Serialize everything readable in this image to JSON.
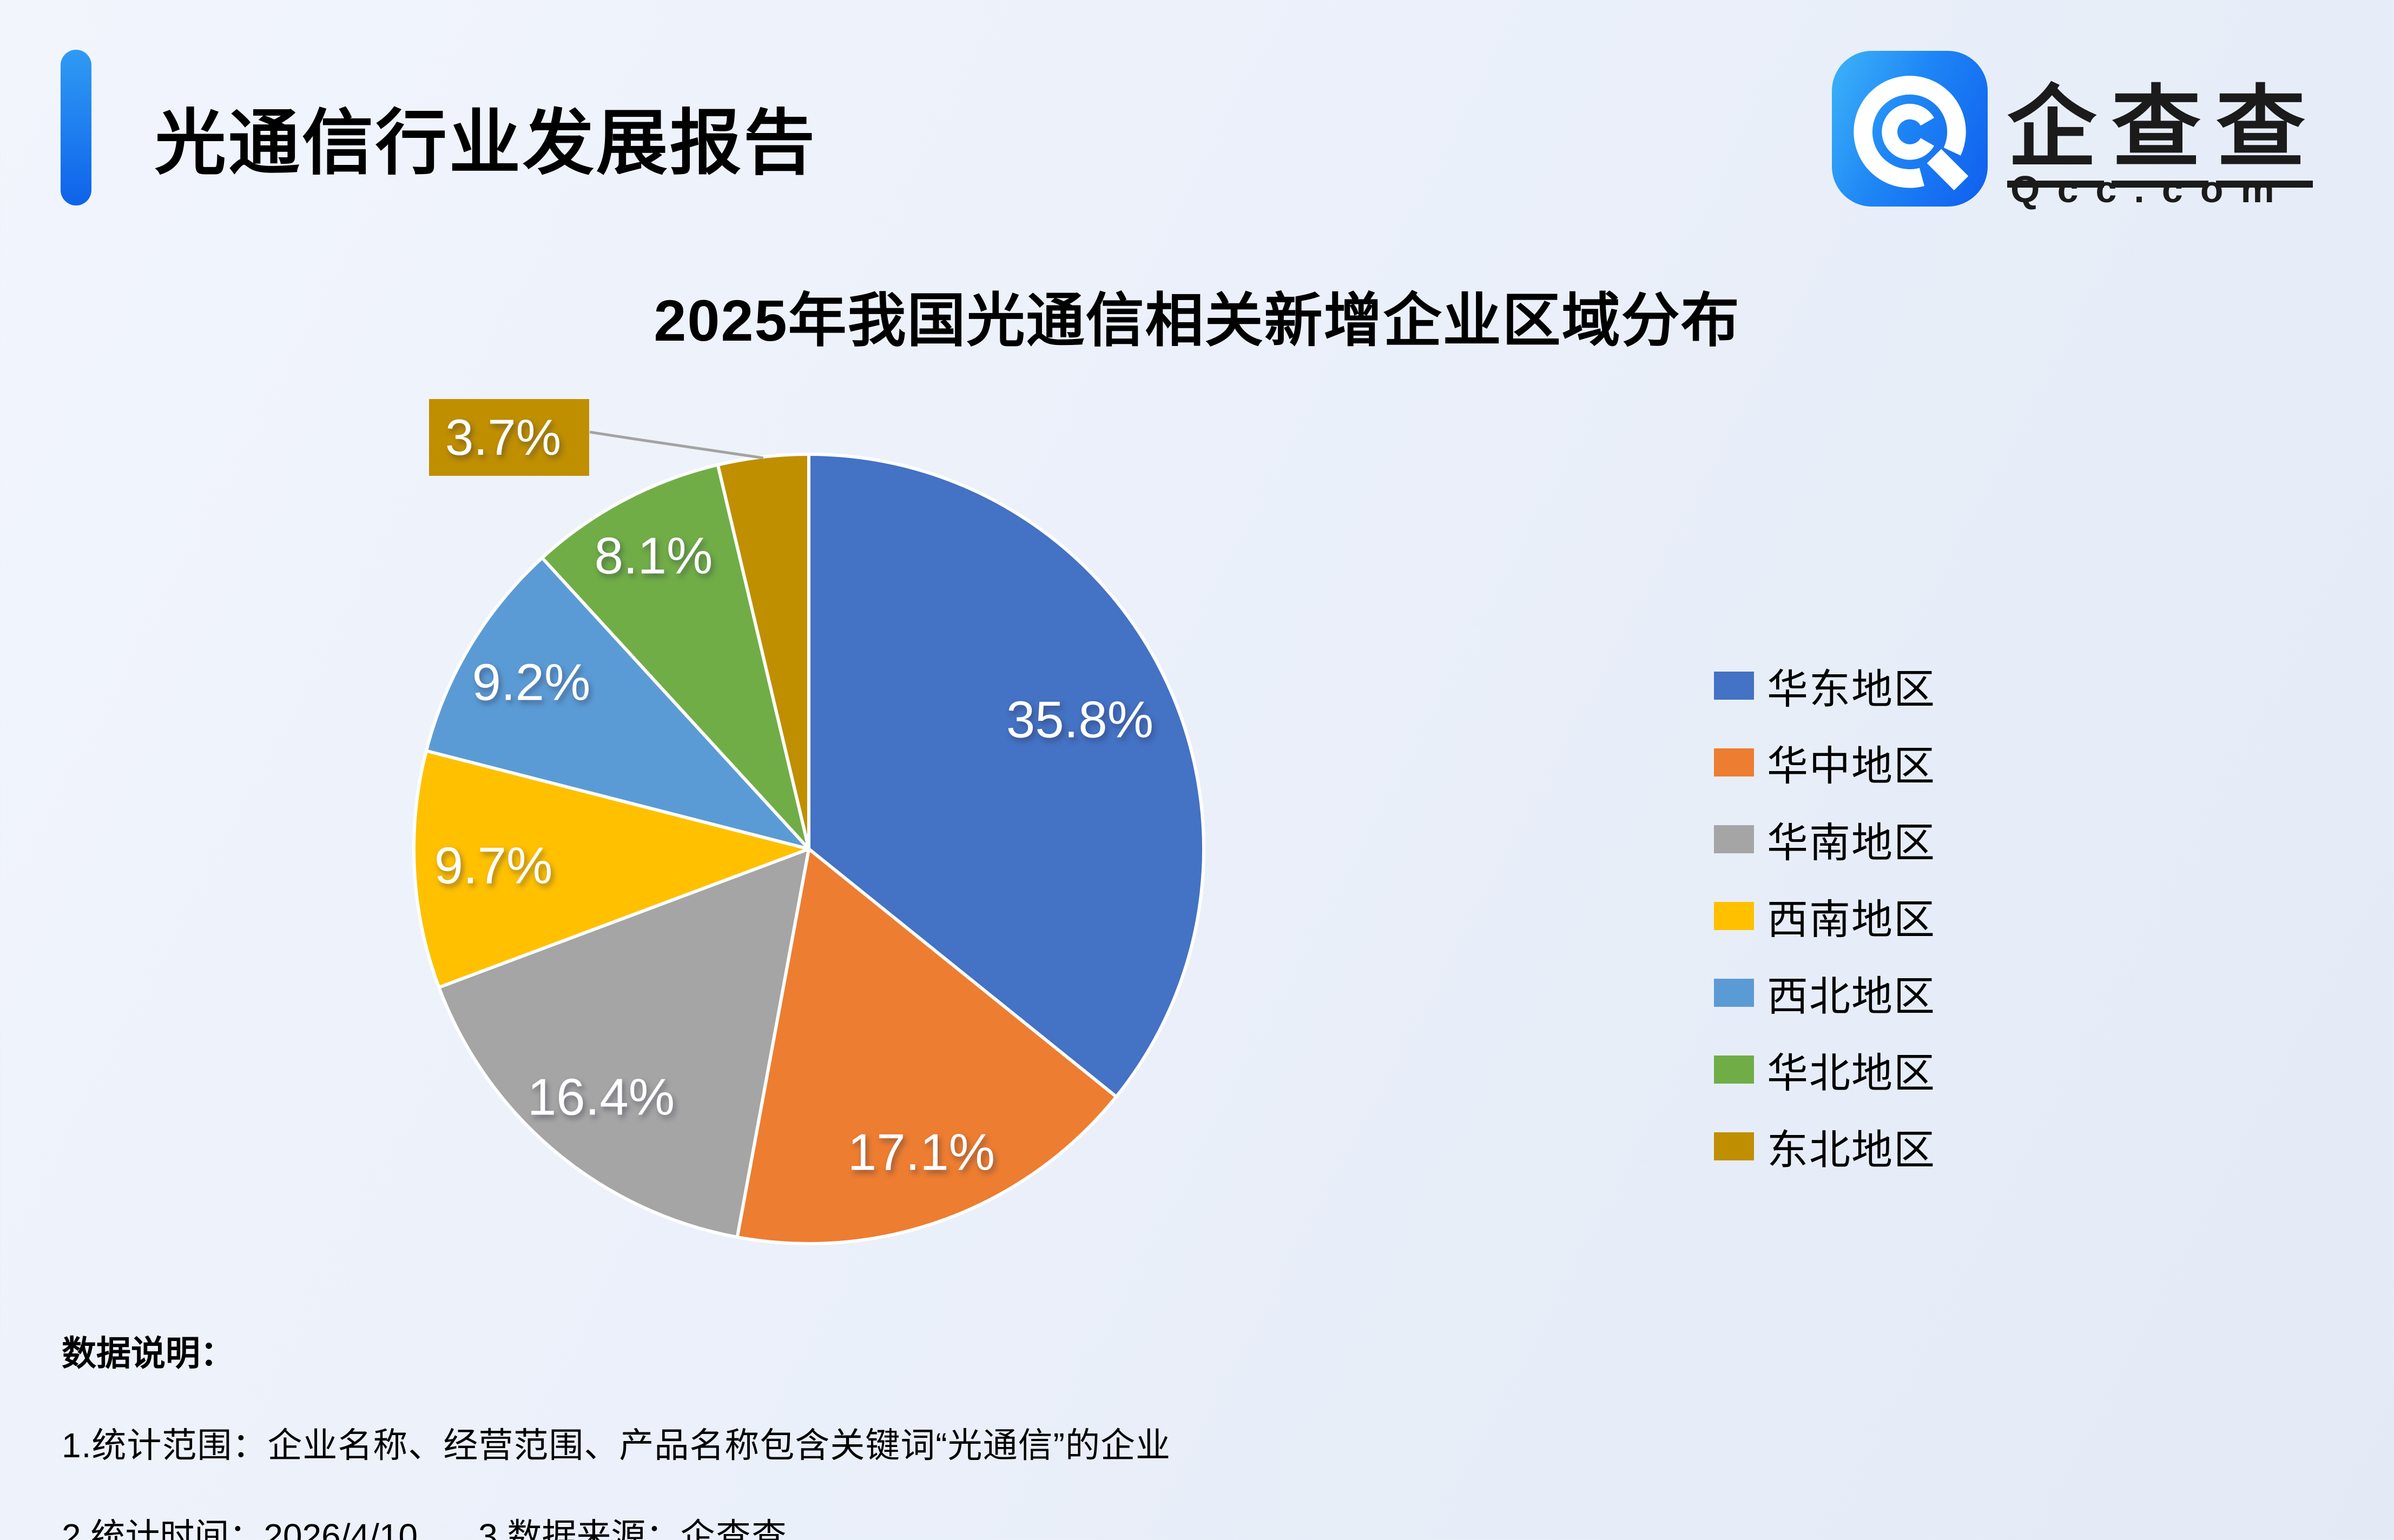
{
  "report": {
    "title": "光通信行业发展报告"
  },
  "brand": {
    "wordmark": "企查查",
    "domain": "Qcc.com",
    "accent_blue": "#1677F5"
  },
  "chart_data": {
    "type": "pie",
    "title": "2025年我国光通信相关新增企业区域分布",
    "unit": "percent",
    "categories": [
      "华东地区",
      "华中地区",
      "华南地区",
      "西南地区",
      "西北地区",
      "华北地区",
      "东北地区"
    ],
    "values": [
      35.8,
      17.1,
      16.4,
      9.7,
      9.2,
      8.1,
      3.7
    ],
    "labels": [
      "35.8%",
      "17.1%",
      "16.4%",
      "9.7%",
      "9.2%",
      "8.1%",
      "3.7%"
    ],
    "colors": [
      "#4472C4",
      "#ED7D31",
      "#A5A5A5",
      "#FFC000",
      "#5B9BD5",
      "#70AD47",
      "#BF8F00"
    ],
    "label_color": "#FFFFFF",
    "slice_border_color": "#FFFFFF",
    "leader_line_color": "#A3A3A3",
    "legend_position": "right",
    "start_angle_deg": 0,
    "callout_slice_index": 6
  },
  "notes": {
    "heading": "数据说明：",
    "line1": "1.统计范围：企业名称、经营范围、产品名称包含关键词“光通信”的企业",
    "line2_time": "2.统计时间：2026/4/10",
    "line2_source_label": "3.数据来源：",
    "line2_source": "企查查"
  }
}
